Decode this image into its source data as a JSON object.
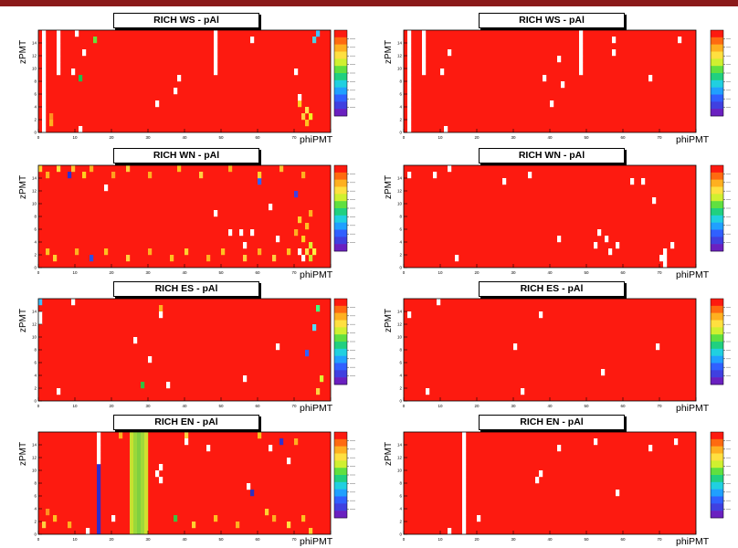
{
  "page": {
    "accent_color": "#8b1a1a"
  },
  "chart_data": [
    {
      "type": "heatmap",
      "title": "RICH WS - pAl",
      "xlabel": "phiPMT",
      "ylabel": "zPMT",
      "xlim": [
        0,
        80
      ],
      "ylim": [
        0,
        16
      ],
      "colorscale": "rainbow",
      "grid": false,
      "dead_cells": [
        [
          1,
          0
        ],
        [
          1,
          1
        ],
        [
          1,
          2
        ],
        [
          1,
          3
        ],
        [
          1,
          4
        ],
        [
          1,
          5
        ],
        [
          1,
          6
        ],
        [
          1,
          7
        ],
        [
          1,
          8
        ],
        [
          1,
          9
        ],
        [
          1,
          10
        ],
        [
          1,
          11
        ],
        [
          1,
          12
        ],
        [
          1,
          13
        ],
        [
          1,
          14
        ],
        [
          1,
          15
        ],
        [
          5,
          9
        ],
        [
          5,
          10
        ],
        [
          5,
          11
        ],
        [
          5,
          12
        ],
        [
          5,
          13
        ],
        [
          5,
          14
        ],
        [
          5,
          15
        ],
        [
          10,
          15
        ],
        [
          12,
          12
        ],
        [
          9,
          9
        ],
        [
          38,
          8
        ],
        [
          48,
          9
        ],
        [
          48,
          10
        ],
        [
          48,
          11
        ],
        [
          48,
          12
        ],
        [
          48,
          13
        ],
        [
          48,
          14
        ],
        [
          48,
          15
        ],
        [
          32,
          4
        ],
        [
          37,
          6
        ],
        [
          58,
          14
        ],
        [
          70,
          9
        ],
        [
          71,
          5
        ],
        [
          11,
          0
        ]
      ],
      "hot_cells": [
        [
          15,
          14,
          "#6adf3a"
        ],
        [
          11,
          8,
          "#1fc050"
        ],
        [
          75,
          14,
          "#50d0e0"
        ],
        [
          76,
          15,
          "#40c0ff"
        ],
        [
          71,
          4,
          "#ffd020"
        ],
        [
          72,
          2,
          "#ffd040"
        ],
        [
          73,
          3,
          "#ffe050"
        ],
        [
          73,
          1,
          "#ffc020"
        ],
        [
          74,
          2,
          "#f0f020"
        ],
        [
          3,
          2,
          "#ff9020"
        ],
        [
          3,
          1,
          "#ffb020"
        ]
      ]
    },
    {
      "type": "heatmap",
      "title": "RICH WS - pAl",
      "xlabel": "phiPMT",
      "ylabel": "zPMT",
      "xlim": [
        0,
        80
      ],
      "ylim": [
        0,
        16
      ],
      "colorscale": "rainbow",
      "grid": false,
      "dead_cells": [
        [
          1,
          0
        ],
        [
          1,
          1
        ],
        [
          1,
          2
        ],
        [
          1,
          3
        ],
        [
          1,
          4
        ],
        [
          1,
          5
        ],
        [
          1,
          6
        ],
        [
          1,
          7
        ],
        [
          1,
          8
        ],
        [
          1,
          9
        ],
        [
          1,
          10
        ],
        [
          1,
          11
        ],
        [
          1,
          12
        ],
        [
          1,
          13
        ],
        [
          1,
          14
        ],
        [
          1,
          15
        ],
        [
          5,
          9
        ],
        [
          5,
          10
        ],
        [
          5,
          11
        ],
        [
          5,
          12
        ],
        [
          5,
          13
        ],
        [
          5,
          14
        ],
        [
          5,
          15
        ],
        [
          12,
          12
        ],
        [
          10,
          9
        ],
        [
          43,
          7
        ],
        [
          42,
          11
        ],
        [
          38,
          8
        ],
        [
          48,
          9
        ],
        [
          48,
          10
        ],
        [
          48,
          11
        ],
        [
          48,
          12
        ],
        [
          48,
          13
        ],
        [
          48,
          14
        ],
        [
          48,
          15
        ],
        [
          40,
          4
        ],
        [
          57,
          14
        ],
        [
          57,
          12
        ],
        [
          67,
          8
        ],
        [
          11,
          0
        ],
        [
          75,
          14
        ]
      ],
      "hot_cells": []
    },
    {
      "type": "heatmap",
      "title": "RICH WN - pAl",
      "xlabel": "phiPMT",
      "ylabel": "zPMT",
      "xlim": [
        0,
        80
      ],
      "ylim": [
        0,
        16
      ],
      "colorscale": "rainbow",
      "grid": false,
      "dead_cells": [
        [
          18,
          12
        ],
        [
          48,
          8
        ],
        [
          52,
          5
        ],
        [
          55,
          5
        ],
        [
          56,
          3
        ],
        [
          58,
          5
        ],
        [
          63,
          9
        ],
        [
          71,
          2
        ],
        [
          72,
          1
        ],
        [
          65,
          4
        ]
      ],
      "hot_cells": [
        [
          8,
          14,
          "#3030d0"
        ],
        [
          14,
          1,
          "#3050e0"
        ],
        [
          60,
          13,
          "#3060ff"
        ],
        [
          70,
          11,
          "#4040e0"
        ],
        [
          0,
          15,
          "#ffd030"
        ],
        [
          2,
          14,
          "#ffb020"
        ],
        [
          5,
          15,
          "#ffe040"
        ],
        [
          9,
          15,
          "#ffc030"
        ],
        [
          12,
          14,
          "#ffd020"
        ],
        [
          14,
          15,
          "#ffb020"
        ],
        [
          20,
          14,
          "#ffa020"
        ],
        [
          24,
          15,
          "#ffd040"
        ],
        [
          30,
          14,
          "#ffb020"
        ],
        [
          38,
          15,
          "#ffc020"
        ],
        [
          44,
          14,
          "#ffd040"
        ],
        [
          52,
          15,
          "#ffb020"
        ],
        [
          60,
          14,
          "#ffd030"
        ],
        [
          66,
          15,
          "#ffc030"
        ],
        [
          72,
          14,
          "#ffb020"
        ],
        [
          74,
          3,
          "#e0f030"
        ],
        [
          75,
          2,
          "#fff040"
        ],
        [
          74,
          1,
          "#d0e030"
        ],
        [
          72,
          4,
          "#ffd020"
        ],
        [
          73,
          2,
          "#ffe050"
        ],
        [
          68,
          2,
          "#ffc020"
        ],
        [
          64,
          1,
          "#ffd040"
        ],
        [
          60,
          2,
          "#ffb020"
        ],
        [
          56,
          1,
          "#ffd040"
        ],
        [
          50,
          2,
          "#ffc020"
        ],
        [
          46,
          1,
          "#ffb020"
        ],
        [
          40,
          2,
          "#ffd030"
        ],
        [
          36,
          1,
          "#ffc020"
        ],
        [
          30,
          2,
          "#ffb020"
        ],
        [
          24,
          1,
          "#ffd040"
        ],
        [
          18,
          2,
          "#ffc020"
        ],
        [
          10,
          2,
          "#ffb020"
        ],
        [
          4,
          1,
          "#ffd030"
        ],
        [
          2,
          2,
          "#ffc020"
        ],
        [
          70,
          5,
          "#ffb020"
        ],
        [
          71,
          7,
          "#ffd030"
        ],
        [
          73,
          6,
          "#ffc020"
        ],
        [
          74,
          8,
          "#ffb020"
        ]
      ]
    },
    {
      "type": "heatmap",
      "title": "RICH WN - pAl",
      "xlabel": "phiPMT",
      "ylabel": "zPMT",
      "xlim": [
        0,
        80
      ],
      "ylim": [
        0,
        16
      ],
      "colorscale": "rainbow",
      "grid": false,
      "dead_cells": [
        [
          1,
          14
        ],
        [
          8,
          14
        ],
        [
          12,
          15
        ],
        [
          27,
          13
        ],
        [
          34,
          14
        ],
        [
          42,
          4
        ],
        [
          53,
          5
        ],
        [
          55,
          4
        ],
        [
          58,
          3
        ],
        [
          62,
          13
        ],
        [
          65,
          13
        ],
        [
          68,
          10
        ],
        [
          73,
          3
        ],
        [
          71,
          0
        ],
        [
          71,
          1
        ],
        [
          71,
          2
        ],
        [
          70,
          1
        ],
        [
          14,
          1
        ],
        [
          52,
          3
        ],
        [
          56,
          2
        ]
      ],
      "hot_cells": []
    },
    {
      "type": "heatmap",
      "title": "RICH ES - pAl",
      "xlabel": "phiPMT",
      "ylabel": "zPMT",
      "xlim": [
        0,
        80
      ],
      "ylim": [
        0,
        16
      ],
      "colorscale": "rainbow",
      "grid": false,
      "dead_cells": [
        [
          0,
          13
        ],
        [
          9,
          15
        ],
        [
          33,
          13
        ],
        [
          26,
          9
        ],
        [
          30,
          6
        ],
        [
          56,
          3
        ],
        [
          35,
          2
        ],
        [
          65,
          8
        ],
        [
          5,
          1
        ],
        [
          0,
          12
        ]
      ],
      "hot_cells": [
        [
          0,
          15,
          "#40c0ff"
        ],
        [
          28,
          2,
          "#30c040"
        ],
        [
          76,
          14,
          "#40ff80"
        ],
        [
          75,
          11,
          "#50e0ff"
        ],
        [
          73,
          7,
          "#3060ff"
        ],
        [
          76,
          1,
          "#ffd040"
        ],
        [
          77,
          3,
          "#e0f030"
        ],
        [
          33,
          14,
          "#ffb020"
        ]
      ]
    },
    {
      "type": "heatmap",
      "title": "RICH ES - pAl",
      "xlabel": "phiPMT",
      "ylabel": "zPMT",
      "xlim": [
        0,
        80
      ],
      "ylim": [
        0,
        16
      ],
      "colorscale": "rainbow",
      "grid": false,
      "dead_cells": [
        [
          1,
          13
        ],
        [
          9,
          15
        ],
        [
          37,
          13
        ],
        [
          30,
          8
        ],
        [
          54,
          4
        ],
        [
          32,
          1
        ],
        [
          69,
          8
        ],
        [
          6,
          1
        ]
      ],
      "hot_cells": []
    },
    {
      "type": "heatmap",
      "title": "RICH EN - pAl",
      "xlabel": "phiPMT",
      "ylabel": "zPMT",
      "xlim": [
        0,
        80
      ],
      "ylim": [
        0,
        16
      ],
      "colorscale": "rainbow",
      "grid": false,
      "dead_cells": [
        [
          16,
          15
        ],
        [
          16,
          14
        ],
        [
          16,
          13
        ],
        [
          16,
          12
        ],
        [
          16,
          11
        ],
        [
          40,
          14
        ],
        [
          33,
          10
        ],
        [
          33,
          8
        ],
        [
          32,
          9
        ],
        [
          46,
          13
        ],
        [
          63,
          13
        ],
        [
          68,
          11
        ],
        [
          57,
          7
        ],
        [
          20,
          2
        ],
        [
          13,
          0
        ]
      ],
      "hot_cells": [
        [
          66,
          14,
          "#3030d0"
        ],
        [
          58,
          6,
          "#3030c0"
        ],
        [
          37,
          2,
          "#40c040"
        ],
        [
          64,
          2,
          "#ffb020"
        ],
        [
          62,
          3,
          "#ffd030"
        ],
        [
          68,
          1,
          "#ffe040"
        ],
        [
          72,
          2,
          "#ffc020"
        ],
        [
          74,
          0,
          "#ffd030"
        ],
        [
          54,
          1,
          "#ffb020"
        ],
        [
          48,
          2,
          "#ffc020"
        ],
        [
          42,
          1,
          "#ffd030"
        ],
        [
          8,
          1,
          "#ffb020"
        ],
        [
          4,
          2,
          "#ffc020"
        ],
        [
          2,
          3,
          "#ff9020"
        ],
        [
          1,
          1,
          "#ffd040"
        ],
        [
          22,
          15,
          "#ffb020"
        ],
        [
          40,
          15,
          "#ffd040"
        ],
        [
          60,
          15,
          "#ffc020"
        ],
        [
          70,
          14,
          "#ffb020"
        ]
      ],
      "column_bands": [
        {
          "x": 16,
          "from_z": 0,
          "to_z": 10,
          "color": "#2d2dcc"
        },
        {
          "x": 25,
          "from_z": 0,
          "to_z": 15,
          "color": "#c8e030"
        },
        {
          "x": 26,
          "from_z": 0,
          "to_z": 15,
          "color": "#9ad83a"
        },
        {
          "x": 27,
          "from_z": 0,
          "to_z": 15,
          "color": "#80d040"
        },
        {
          "x": 28,
          "from_z": 0,
          "to_z": 15,
          "color": "#a0d83a"
        },
        {
          "x": 29,
          "from_z": 0,
          "to_z": 15,
          "color": "#d0e030"
        }
      ]
    },
    {
      "type": "heatmap",
      "title": "RICH EN - pAl",
      "xlabel": "phiPMT",
      "ylabel": "zPMT",
      "xlim": [
        0,
        80
      ],
      "ylim": [
        0,
        16
      ],
      "colorscale": "rainbow",
      "grid": false,
      "dead_cells": [
        [
          16,
          0
        ],
        [
          16,
          1
        ],
        [
          16,
          2
        ],
        [
          16,
          3
        ],
        [
          16,
          4
        ],
        [
          16,
          5
        ],
        [
          16,
          6
        ],
        [
          16,
          7
        ],
        [
          16,
          8
        ],
        [
          16,
          9
        ],
        [
          16,
          10
        ],
        [
          16,
          11
        ],
        [
          16,
          12
        ],
        [
          16,
          13
        ],
        [
          16,
          14
        ],
        [
          16,
          15
        ],
        [
          42,
          13
        ],
        [
          52,
          14
        ],
        [
          67,
          13
        ],
        [
          74,
          14
        ],
        [
          37,
          9
        ],
        [
          36,
          8
        ],
        [
          58,
          6
        ],
        [
          20,
          2
        ],
        [
          12,
          0
        ]
      ],
      "hot_cells": []
    }
  ]
}
